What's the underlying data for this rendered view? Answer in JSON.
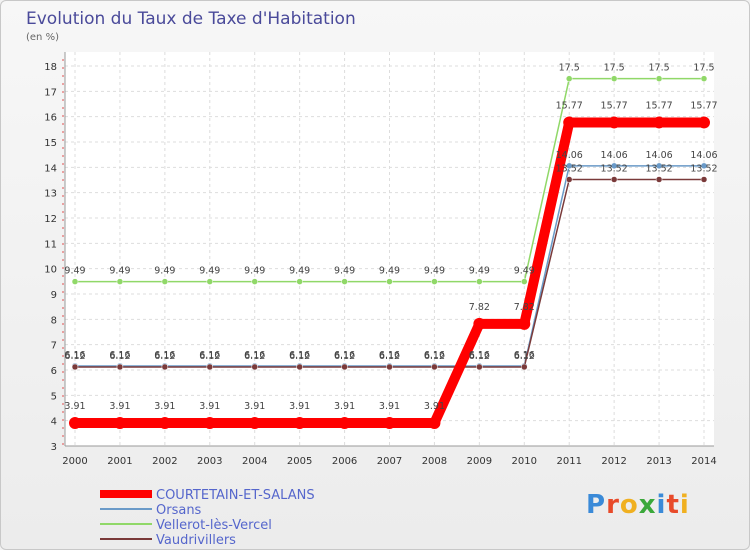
{
  "chart_data": {
    "type": "line",
    "title": "Evolution du Taux de Taxe d'Habitation",
    "subtitle": "(en %)",
    "categories": [
      "2000",
      "2001",
      "2002",
      "2003",
      "2004",
      "2005",
      "2006",
      "2007",
      "2008",
      "2009",
      "2010",
      "2011",
      "2012",
      "2013",
      "2014"
    ],
    "ylim": [
      3,
      18
    ],
    "yticks": [
      3,
      4,
      5,
      6,
      7,
      8,
      9,
      10,
      11,
      12,
      13,
      14,
      15,
      16,
      17,
      18
    ],
    "series": [
      {
        "name": "COURTETAIN-ET-SALANS",
        "color": "#ff0000",
        "values": [
          3.91,
          3.91,
          3.91,
          3.91,
          3.91,
          3.91,
          3.91,
          3.91,
          3.91,
          7.82,
          7.82,
          15.77,
          15.77,
          15.77,
          15.77
        ]
      },
      {
        "name": "Orsans",
        "color": "#6a9ac8",
        "values": [
          6.16,
          6.16,
          6.16,
          6.16,
          6.16,
          6.16,
          6.16,
          6.16,
          6.16,
          6.16,
          6.16,
          14.06,
          14.06,
          14.06,
          14.06
        ]
      },
      {
        "name": "Vellerot-lès-Vercel",
        "color": "#90d868",
        "values": [
          9.49,
          9.49,
          9.49,
          9.49,
          9.49,
          9.49,
          9.49,
          9.49,
          9.49,
          9.49,
          9.49,
          17.5,
          17.5,
          17.5,
          17.5
        ]
      },
      {
        "name": "Vaudrivillers",
        "color": "#7a3a3a",
        "values": [
          6.12,
          6.12,
          6.12,
          6.12,
          6.12,
          6.12,
          6.12,
          6.12,
          6.12,
          6.12,
          6.12,
          13.52,
          13.52,
          13.52,
          13.52
        ]
      }
    ],
    "labels": {
      "COURTETAIN-ET-SALANS": [
        "3.91",
        "3.91",
        "3.91",
        "3.91",
        "3.91",
        "3.91",
        "3.91",
        "3.91",
        "3.91",
        "7.82",
        "7.82",
        "15.77",
        "15.77",
        "15.77",
        "15.77"
      ],
      "Orsans": [
        "6.16",
        "6.16",
        "6.16",
        "6.16",
        "6.16",
        "6.16",
        "6.16",
        "6.16",
        "6.16",
        "6.16",
        "6.16",
        "14.06",
        "14.06",
        "14.06",
        "14.06"
      ],
      "Vellerot-lès-Vercel": [
        "9.49",
        "9.49",
        "9.49",
        "9.49",
        "9.49",
        "9.49",
        "9.49",
        "9.49",
        "9.49",
        "9.49",
        "9.49",
        "17.5",
        "17.5",
        "17.5",
        "17.5"
      ],
      "Vaudrivillers": [
        "6.12",
        "6.12",
        "6.12",
        "6.12",
        "6.12",
        "6.12",
        "6.12",
        "6.12",
        "6.12",
        "6.12",
        "6.12",
        "13.52",
        "13.52",
        "13.52",
        "13.52"
      ]
    },
    "grid": true,
    "legend_position": "bottom-left"
  },
  "logo": {
    "text": "Proxiti",
    "letter_colors": [
      "#3a8ad8",
      "#e84a2a",
      "#f0b020",
      "#3aa83a",
      "#3a8ad8",
      "#e84a2a",
      "#f0b020"
    ]
  }
}
